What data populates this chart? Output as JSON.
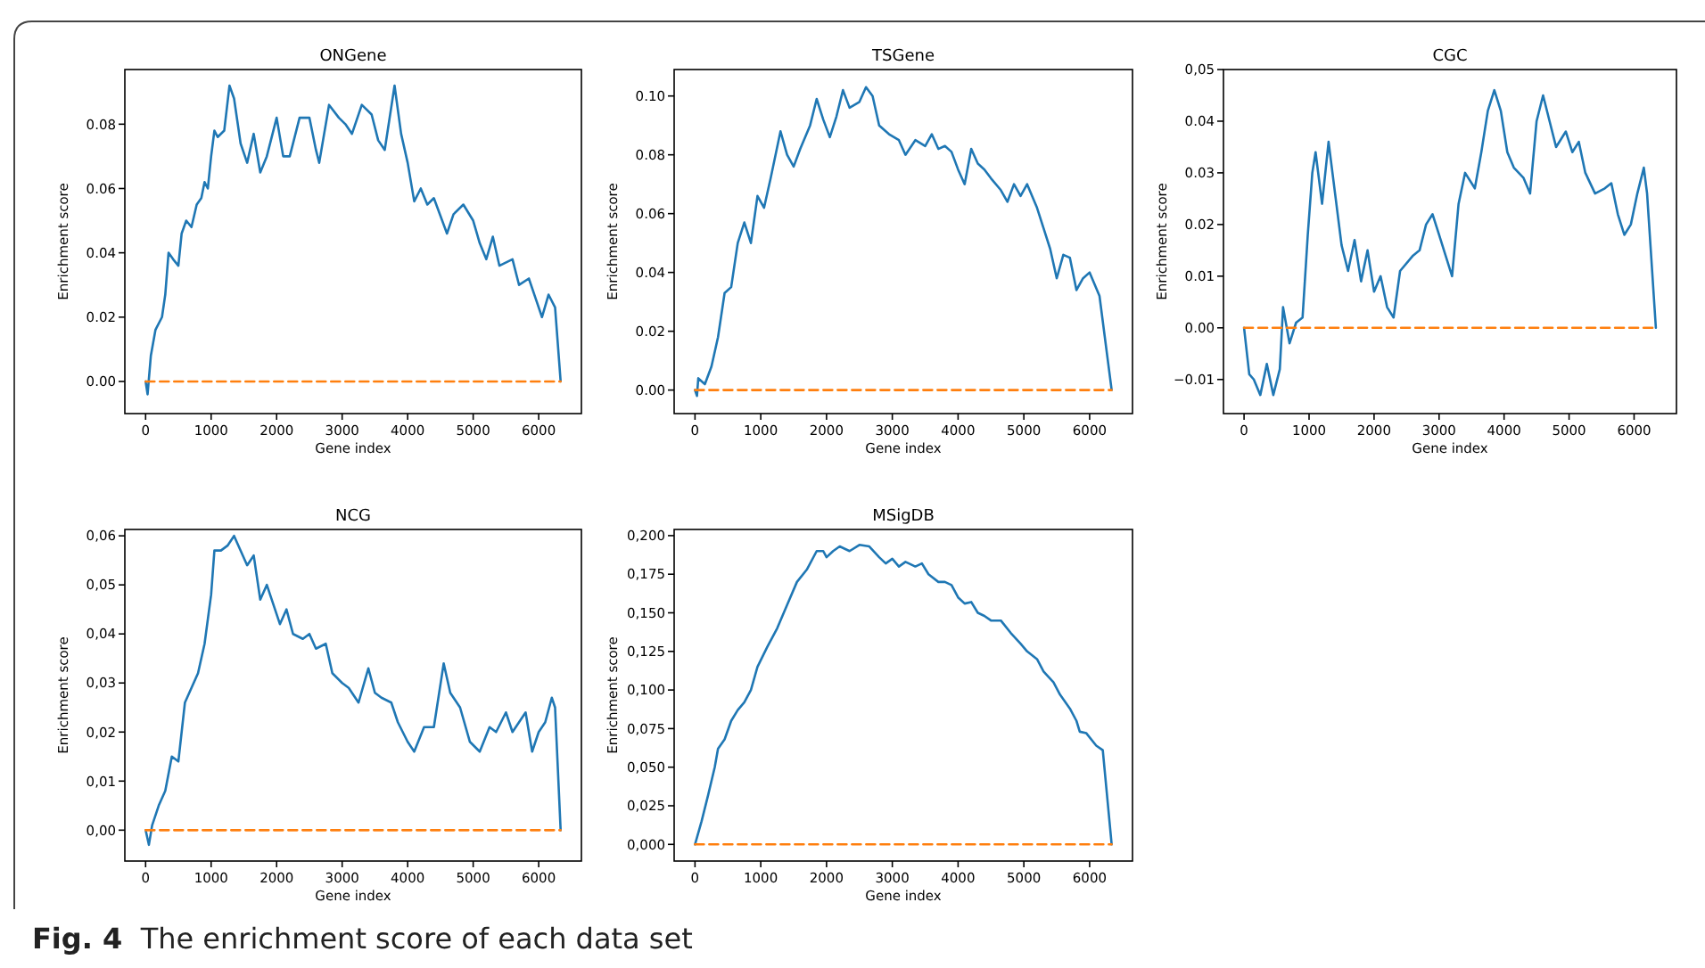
{
  "chart_data": [
    {
      "type": "line",
      "title": "ONGene",
      "xlabel": "Gene index",
      "ylabel": "Enrichment score",
      "xlim": [
        -317,
        6652
      ],
      "ylim": [
        -0.01,
        0.097
      ],
      "xticks": [
        0,
        1000,
        2000,
        3000,
        4000,
        5000,
        6000
      ],
      "yticks": [
        {
          "value": 0,
          "label": "0.00"
        },
        {
          "value": 0.02,
          "label": "0.02"
        },
        {
          "value": 0.04,
          "label": "0.04"
        },
        {
          "value": 0.06,
          "label": "0.06"
        },
        {
          "value": 0.08,
          "label": "0.08"
        }
      ],
      "grid": false,
      "series": [
        {
          "color": "#1f77b4",
          "line_style": "solid",
          "x": [
            0,
            30,
            80,
            150,
            250,
            300,
            350,
            420,
            500,
            550,
            620,
            700,
            780,
            850,
            900,
            950,
            1000,
            1050,
            1100,
            1200,
            1280,
            1350,
            1450,
            1550,
            1650,
            1750,
            1850,
            2000,
            2100,
            2200,
            2350,
            2500,
            2600,
            2650,
            2800,
            2950,
            3050,
            3150,
            3300,
            3450,
            3550,
            3650,
            3800,
            3900,
            4000,
            4100,
            4200,
            4300,
            4400,
            4600,
            4700,
            4850,
            5000,
            5100,
            5200,
            5300,
            5400,
            5600,
            5700,
            5850,
            5950,
            6050,
            6150,
            6250,
            6335
          ],
          "values": [
            0,
            -0.004,
            0.008,
            0.016,
            0.02,
            0.027,
            0.04,
            0.038,
            0.036,
            0.046,
            0.05,
            0.048,
            0.055,
            0.057,
            0.062,
            0.06,
            0.07,
            0.078,
            0.076,
            0.078,
            0.092,
            0.088,
            0.074,
            0.068,
            0.077,
            0.065,
            0.07,
            0.082,
            0.07,
            0.07,
            0.082,
            0.082,
            0.072,
            0.068,
            0.086,
            0.082,
            0.08,
            0.077,
            0.086,
            0.083,
            0.075,
            0.072,
            0.092,
            0.077,
            0.068,
            0.056,
            0.06,
            0.055,
            0.057,
            0.046,
            0.052,
            0.055,
            0.05,
            0.043,
            0.038,
            0.045,
            0.036,
            0.038,
            0.03,
            0.032,
            0.026,
            0.02,
            0.027,
            0.023,
            0
          ]
        },
        {
          "color": "#ff7f0e",
          "line_style": "dashed",
          "x": [
            0,
            6335
          ],
          "values": [
            0,
            0
          ]
        }
      ]
    },
    {
      "type": "line",
      "title": "TSGene",
      "xlabel": "Gene index",
      "ylabel": "Enrichment score",
      "xlim": [
        -317,
        6652
      ],
      "ylim": [
        -0.008,
        0.109
      ],
      "xticks": [
        0,
        1000,
        2000,
        3000,
        4000,
        5000,
        6000
      ],
      "yticks": [
        {
          "value": 0,
          "label": "0.00"
        },
        {
          "value": 0.02,
          "label": "0.02"
        },
        {
          "value": 0.04,
          "label": "0.04"
        },
        {
          "value": 0.06,
          "label": "0.06"
        },
        {
          "value": 0.08,
          "label": "0.08"
        },
        {
          "value": 0.1,
          "label": "0.10"
        }
      ],
      "grid": false,
      "series": [
        {
          "color": "#1f77b4",
          "line_style": "solid",
          "x": [
            0,
            30,
            50,
            150,
            250,
            350,
            450,
            550,
            650,
            750,
            850,
            950,
            1050,
            1150,
            1300,
            1400,
            1500,
            1600,
            1750,
            1850,
            1950,
            2050,
            2150,
            2250,
            2350,
            2500,
            2600,
            2700,
            2800,
            2950,
            3100,
            3200,
            3350,
            3500,
            3600,
            3700,
            3800,
            3900,
            4000,
            4100,
            4200,
            4300,
            4400,
            4500,
            4650,
            4750,
            4850,
            4950,
            5050,
            5200,
            5300,
            5400,
            5500,
            5600,
            5700,
            5800,
            5900,
            6000,
            6150,
            6335
          ],
          "values": [
            0,
            -0.002,
            0.004,
            0.002,
            0.008,
            0.018,
            0.033,
            0.035,
            0.05,
            0.057,
            0.05,
            0.066,
            0.062,
            0.072,
            0.088,
            0.08,
            0.076,
            0.082,
            0.09,
            0.099,
            0.092,
            0.086,
            0.093,
            0.102,
            0.096,
            0.098,
            0.103,
            0.1,
            0.09,
            0.087,
            0.085,
            0.08,
            0.085,
            0.083,
            0.087,
            0.082,
            0.083,
            0.081,
            0.075,
            0.07,
            0.082,
            0.077,
            0.075,
            0.072,
            0.068,
            0.064,
            0.07,
            0.066,
            0.07,
            0.062,
            0.055,
            0.048,
            0.038,
            0.046,
            0.045,
            0.034,
            0.038,
            0.04,
            0.032,
            0
          ]
        },
        {
          "color": "#ff7f0e",
          "line_style": "dashed",
          "x": [
            0,
            6335
          ],
          "values": [
            0,
            0
          ]
        }
      ]
    },
    {
      "type": "line",
      "title": "CGC",
      "xlabel": "Gene index",
      "ylabel": "Enrichment score",
      "xlim": [
        -317,
        6652
      ],
      "ylim": [
        -0.0166,
        0.05
      ],
      "xticks": [
        0,
        1000,
        2000,
        3000,
        4000,
        5000,
        6000
      ],
      "yticks": [
        {
          "value": -0.01,
          "label": "−0.01"
        },
        {
          "value": 0,
          "label": "0.00"
        },
        {
          "value": 0.01,
          "label": "0.01"
        },
        {
          "value": 0.02,
          "label": "0.02"
        },
        {
          "value": 0.03,
          "label": "0.03"
        },
        {
          "value": 0.04,
          "label": "0.04"
        },
        {
          "value": 0.05,
          "label": "0,05"
        }
      ],
      "grid": false,
      "series": [
        {
          "color": "#1f77b4",
          "line_style": "solid",
          "x": [
            0,
            80,
            150,
            250,
            350,
            450,
            550,
            600,
            700,
            800,
            900,
            980,
            1050,
            1100,
            1200,
            1300,
            1400,
            1500,
            1600,
            1700,
            1800,
            1900,
            2000,
            2100,
            2200,
            2300,
            2400,
            2600,
            2700,
            2800,
            2900,
            3000,
            3100,
            3200,
            3300,
            3400,
            3550,
            3650,
            3750,
            3850,
            3950,
            4050,
            4150,
            4300,
            4400,
            4500,
            4600,
            4700,
            4800,
            4950,
            5050,
            5150,
            5250,
            5400,
            5550,
            5650,
            5750,
            5850,
            5950,
            6050,
            6150,
            6200,
            6335
          ],
          "values": [
            0,
            -0.009,
            -0.01,
            -0.013,
            -0.007,
            -0.013,
            -0.008,
            0.004,
            -0.003,
            0.001,
            0.002,
            0.018,
            0.03,
            0.034,
            0.024,
            0.036,
            0.026,
            0.016,
            0.011,
            0.017,
            0.009,
            0.015,
            0.007,
            0.01,
            0.004,
            0.002,
            0.011,
            0.014,
            0.015,
            0.02,
            0.022,
            0.018,
            0.014,
            0.01,
            0.024,
            0.03,
            0.027,
            0.034,
            0.042,
            0.046,
            0.042,
            0.034,
            0.031,
            0.029,
            0.026,
            0.04,
            0.045,
            0.04,
            0.035,
            0.038,
            0.034,
            0.036,
            0.03,
            0.026,
            0.027,
            0.028,
            0.022,
            0.018,
            0.02,
            0.026,
            0.031,
            0.026,
            0
          ]
        },
        {
          "color": "#ff7f0e",
          "line_style": "dashed",
          "x": [
            0,
            6335
          ],
          "values": [
            0,
            0
          ]
        }
      ]
    },
    {
      "type": "line",
      "title": "NCG",
      "xlabel": "Gene index",
      "ylabel": "Enrichment score",
      "xlim": [
        -317,
        6652
      ],
      "ylim": [
        -0.0063,
        0.0613
      ],
      "xticks": [
        0,
        1000,
        2000,
        3000,
        4000,
        5000,
        6000
      ],
      "yticks": [
        {
          "value": 0,
          "label": "0,00"
        },
        {
          "value": 0.01,
          "label": "0,01"
        },
        {
          "value": 0.02,
          "label": "0,02"
        },
        {
          "value": 0.03,
          "label": "0,03"
        },
        {
          "value": 0.04,
          "label": "0,04"
        },
        {
          "value": 0.05,
          "label": "0,05"
        },
        {
          "value": 0.06,
          "label": "0,06"
        }
      ],
      "grid": false,
      "series": [
        {
          "color": "#1f77b4",
          "line_style": "solid",
          "x": [
            0,
            50,
            100,
            200,
            300,
            400,
            500,
            600,
            700,
            800,
            900,
            1000,
            1050,
            1150,
            1250,
            1350,
            1450,
            1550,
            1650,
            1750,
            1850,
            1950,
            2050,
            2150,
            2250,
            2400,
            2500,
            2600,
            2750,
            2850,
            3000,
            3100,
            3250,
            3400,
            3500,
            3600,
            3750,
            3850,
            4000,
            4100,
            4250,
            4400,
            4550,
            4650,
            4800,
            4950,
            5100,
            5250,
            5350,
            5500,
            5600,
            5700,
            5800,
            5900,
            6000,
            6100,
            6200,
            6250,
            6335
          ],
          "values": [
            0,
            -0.003,
            0.001,
            0.005,
            0.008,
            0.015,
            0.014,
            0.026,
            0.029,
            0.032,
            0.038,
            0.048,
            0.057,
            0.057,
            0.058,
            0.06,
            0.057,
            0.054,
            0.056,
            0.047,
            0.05,
            0.046,
            0.042,
            0.045,
            0.04,
            0.039,
            0.04,
            0.037,
            0.038,
            0.032,
            0.03,
            0.029,
            0.026,
            0.033,
            0.028,
            0.027,
            0.026,
            0.022,
            0.018,
            0.016,
            0.021,
            0.021,
            0.034,
            0.028,
            0.025,
            0.018,
            0.016,
            0.021,
            0.02,
            0.024,
            0.02,
            0.022,
            0.024,
            0.016,
            0.02,
            0.022,
            0.027,
            0.025,
            0
          ]
        },
        {
          "color": "#ff7f0e",
          "line_style": "dashed",
          "x": [
            0,
            6335
          ],
          "values": [
            0,
            0
          ]
        }
      ]
    },
    {
      "type": "line",
      "title": "MSigDB",
      "xlabel": "Gene index",
      "ylabel": "Enrichment score",
      "xlim": [
        -317,
        6652
      ],
      "ylim": [
        -0.0108,
        0.204
      ],
      "xticks": [
        0,
        1000,
        2000,
        3000,
        4000,
        5000,
        6000
      ],
      "yticks": [
        {
          "value": 0,
          "label": "0,000"
        },
        {
          "value": 0.025,
          "label": "0,025"
        },
        {
          "value": 0.05,
          "label": "0,050"
        },
        {
          "value": 0.075,
          "label": "0,075"
        },
        {
          "value": 0.1,
          "label": "0,100"
        },
        {
          "value": 0.125,
          "label": "0,125"
        },
        {
          "value": 0.15,
          "label": "0,150"
        },
        {
          "value": 0.175,
          "label": "0,175"
        },
        {
          "value": 0.2,
          "label": "0,200"
        }
      ],
      "grid": false,
      "annotations": [
        "Fig. 4  The enrichment score of each data set"
      ],
      "series": [
        {
          "color": "#1f77b4",
          "line_style": "solid",
          "x": [
            0,
            100,
            200,
            300,
            350,
            450,
            550,
            650,
            750,
            850,
            950,
            1100,
            1250,
            1400,
            1550,
            1700,
            1850,
            1950,
            2000,
            2100,
            2200,
            2350,
            2500,
            2650,
            2800,
            2900,
            3000,
            3100,
            3200,
            3350,
            3450,
            3550,
            3700,
            3800,
            3900,
            4000,
            4100,
            4200,
            4300,
            4400,
            4500,
            4650,
            4800,
            4950,
            5050,
            5200,
            5300,
            5450,
            5550,
            5700,
            5800,
            5850,
            5950,
            6100,
            6200,
            6335
          ],
          "values": [
            0,
            0.015,
            0.032,
            0.05,
            0.062,
            0.068,
            0.08,
            0.087,
            0.092,
            0.1,
            0.115,
            0.128,
            0.14,
            0.155,
            0.17,
            0.178,
            0.19,
            0.19,
            0.186,
            0.19,
            0.193,
            0.19,
            0.194,
            0.193,
            0.186,
            0.182,
            0.185,
            0.18,
            0.183,
            0.18,
            0.182,
            0.175,
            0.17,
            0.17,
            0.168,
            0.16,
            0.156,
            0.157,
            0.15,
            0.148,
            0.145,
            0.145,
            0.137,
            0.13,
            0.125,
            0.12,
            0.112,
            0.105,
            0.097,
            0.088,
            0.08,
            0.073,
            0.072,
            0.064,
            0.061,
            0
          ]
        },
        {
          "color": "#ff7f0e",
          "line_style": "dashed",
          "x": [
            0,
            6335
          ],
          "values": [
            0,
            0
          ]
        }
      ]
    }
  ]
}
